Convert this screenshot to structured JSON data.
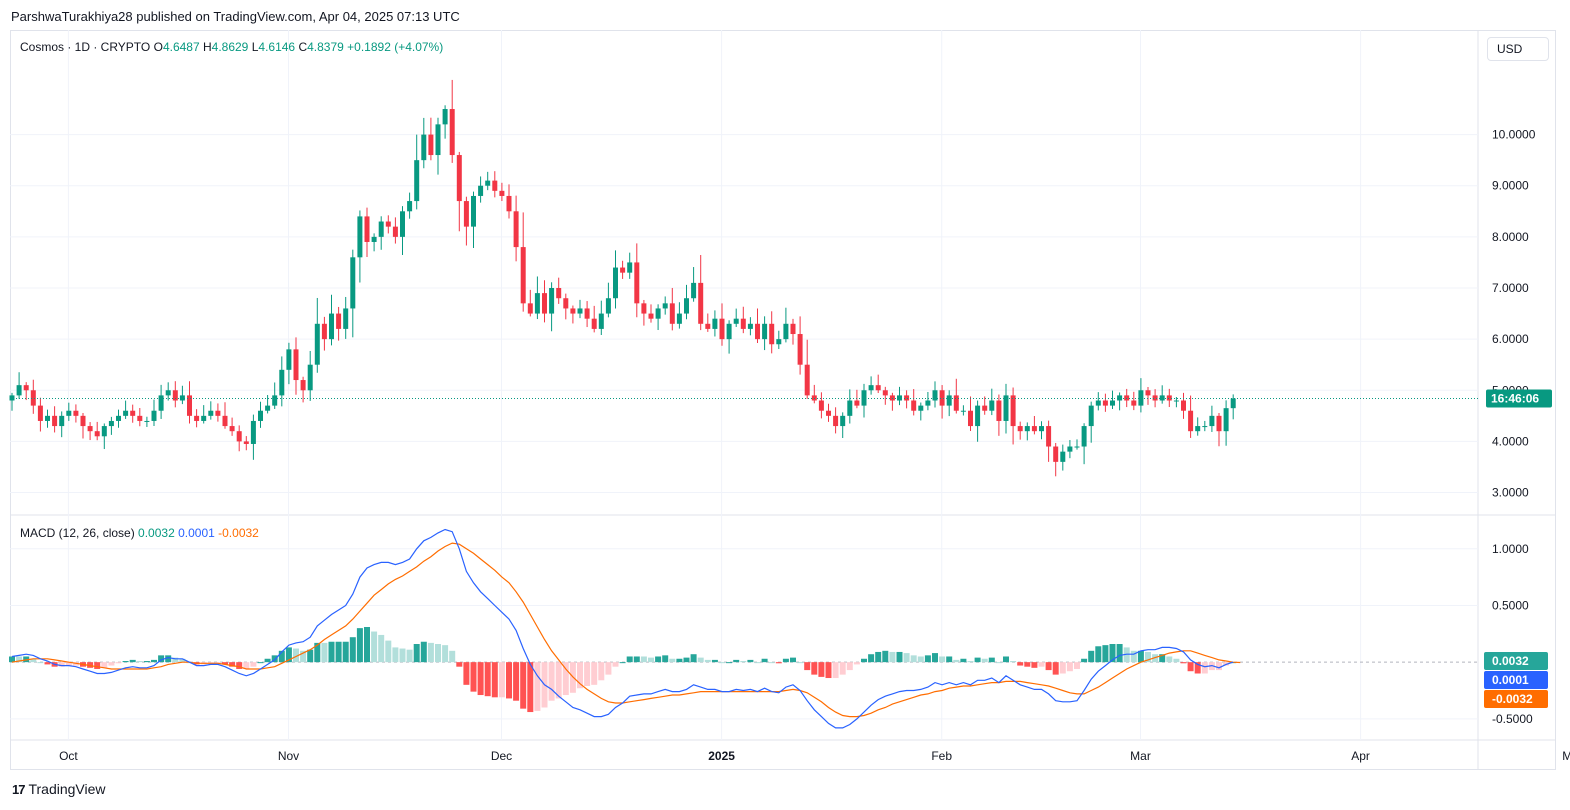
{
  "header": {
    "publisher_line": "ParshwaTurakhiya28 published on TradingView.com, Apr 04, 2025 07:13 UTC"
  },
  "legend": {
    "symbol": "Cosmos · 1D · CRYPTO",
    "open_label": "O",
    "open": "4.6487",
    "high_label": "H",
    "high": "4.8629",
    "low_label": "L",
    "low": "4.6146",
    "close_label": "C",
    "close": "4.8379",
    "change": "+0.1892 (+4.07%)"
  },
  "currency_button": "USD",
  "macd_legend": {
    "name": "MACD (12, 26, close)",
    "hist": "0.0032",
    "macd": "0.0001",
    "signal": "-0.0032"
  },
  "footer": {
    "brand": "TradingView",
    "logo_text": "17"
  },
  "colors": {
    "up": "#089981",
    "down": "#f23645",
    "macd_line": "#2962ff",
    "signal_line": "#ff6d00",
    "hist_up_strong": "#26a69a",
    "hist_up_weak": "#b2dfdb",
    "hist_down_strong": "#ff5252",
    "hist_down_weak": "#ffcdd2"
  },
  "chart_data": [
    {
      "type": "candlestick",
      "title": "Cosmos · 1D · CRYPTO",
      "ylim": [
        2.6,
        11.4
      ],
      "y_ticks": [
        "3.0000",
        "4.0000",
        "5.0000",
        "6.0000",
        "7.0000",
        "8.0000",
        "9.0000",
        "10.0000"
      ],
      "x_ticks": [
        {
          "label": "Oct",
          "day": 4
        },
        {
          "label": "Nov",
          "day": 35
        },
        {
          "label": "Dec",
          "day": 65
        },
        {
          "label": "2025",
          "day": 96
        },
        {
          "label": "Feb",
          "day": 127
        },
        {
          "label": "Mar",
          "day": 155
        },
        {
          "label": "Apr",
          "day": 186
        },
        {
          "label": "May",
          "day": 216
        }
      ],
      "last_price": 4.8379,
      "countdown_label": "16:46:06",
      "closes": [
        4.9,
        5.1,
        5.0,
        4.7,
        4.4,
        4.5,
        4.3,
        4.5,
        4.6,
        4.5,
        4.3,
        4.2,
        4.1,
        4.3,
        4.4,
        4.5,
        4.6,
        4.5,
        4.4,
        4.4,
        4.6,
        4.9,
        5.0,
        4.8,
        4.9,
        4.5,
        4.4,
        4.5,
        4.6,
        4.5,
        4.3,
        4.2,
        4.0,
        3.95,
        4.4,
        4.6,
        4.7,
        4.9,
        5.4,
        5.8,
        5.2,
        5.0,
        5.5,
        6.3,
        6.0,
        6.5,
        6.2,
        6.6,
        7.6,
        8.4,
        7.9,
        8.0,
        8.3,
        8.2,
        8.0,
        8.5,
        8.7,
        9.5,
        10.0,
        9.6,
        10.2,
        10.5,
        9.6,
        8.7,
        8.2,
        8.8,
        9.0,
        9.1,
        8.9,
        8.8,
        8.5,
        7.8,
        6.7,
        6.5,
        6.9,
        6.5,
        7.0,
        6.8,
        6.6,
        6.5,
        6.6,
        6.4,
        6.2,
        6.5,
        6.8,
        7.4,
        7.3,
        7.5,
        6.7,
        6.5,
        6.4,
        6.6,
        6.7,
        6.3,
        6.5,
        6.8,
        7.1,
        6.3,
        6.2,
        6.4,
        6.0,
        6.3,
        6.4,
        6.2,
        6.3,
        6.0,
        6.3,
        5.9,
        6.0,
        6.3,
        6.1,
        5.5,
        4.9,
        4.8,
        4.6,
        4.5,
        4.3,
        4.5,
        4.8,
        4.7,
        5.0,
        5.1,
        5.0,
        4.9,
        4.8,
        4.9,
        4.8,
        4.6,
        4.7,
        4.8,
        5.0,
        4.7,
        4.9,
        4.6,
        4.6,
        4.3,
        4.7,
        4.6,
        4.8,
        4.4,
        4.9,
        4.3,
        4.2,
        4.3,
        4.2,
        4.3,
        3.9,
        3.6,
        3.8,
        3.9,
        3.9,
        4.3,
        4.7,
        4.8,
        4.7,
        4.8,
        4.9,
        4.8,
        4.7,
        5.0,
        4.9,
        4.8,
        4.9,
        4.8,
        4.8,
        4.6,
        4.2,
        4.3,
        4.3,
        4.5,
        4.2,
        4.65,
        4.84
      ],
      "volatility_note": "derived highs/lows extend beyond open/close"
    },
    {
      "type": "line+histogram",
      "title": "MACD (12, 26, close)",
      "ylim": [
        -0.66,
        1.28
      ],
      "y_ticks": [
        "-0.5000",
        "0.5000",
        "1.0000"
      ],
      "last_values": {
        "hist": 0.0032,
        "macd": 0.0001,
        "signal": -0.0032
      },
      "macd": [
        0.05,
        0.06,
        0.07,
        0.06,
        0.03,
        0.01,
        -0.02,
        -0.03,
        -0.03,
        -0.04,
        -0.06,
        -0.08,
        -0.1,
        -0.1,
        -0.09,
        -0.07,
        -0.05,
        -0.04,
        -0.05,
        -0.05,
        -0.03,
        0.02,
        0.04,
        0.03,
        0.03,
        0.0,
        -0.03,
        -0.03,
        -0.02,
        -0.02,
        -0.04,
        -0.07,
        -0.1,
        -0.12,
        -0.1,
        -0.06,
        -0.02,
        0.02,
        0.09,
        0.15,
        0.17,
        0.18,
        0.22,
        0.32,
        0.37,
        0.42,
        0.46,
        0.5,
        0.6,
        0.75,
        0.83,
        0.86,
        0.88,
        0.88,
        0.86,
        0.88,
        0.91,
        1.0,
        1.07,
        1.1,
        1.14,
        1.17,
        1.15,
        1.0,
        0.8,
        0.7,
        0.62,
        0.56,
        0.5,
        0.44,
        0.38,
        0.28,
        0.12,
        -0.02,
        -0.12,
        -0.2,
        -0.24,
        -0.3,
        -0.35,
        -0.4,
        -0.42,
        -0.45,
        -0.48,
        -0.48,
        -0.46,
        -0.4,
        -0.36,
        -0.3,
        -0.29,
        -0.28,
        -0.28,
        -0.26,
        -0.24,
        -0.26,
        -0.26,
        -0.24,
        -0.2,
        -0.22,
        -0.24,
        -0.24,
        -0.26,
        -0.26,
        -0.24,
        -0.25,
        -0.24,
        -0.26,
        -0.23,
        -0.26,
        -0.27,
        -0.22,
        -0.2,
        -0.25,
        -0.34,
        -0.42,
        -0.48,
        -0.54,
        -0.58,
        -0.58,
        -0.55,
        -0.5,
        -0.44,
        -0.38,
        -0.33,
        -0.3,
        -0.28,
        -0.26,
        -0.25,
        -0.25,
        -0.24,
        -0.22,
        -0.18,
        -0.2,
        -0.18,
        -0.2,
        -0.18,
        -0.2,
        -0.16,
        -0.16,
        -0.14,
        -0.18,
        -0.12,
        -0.16,
        -0.2,
        -0.22,
        -0.24,
        -0.24,
        -0.28,
        -0.34,
        -0.35,
        -0.35,
        -0.34,
        -0.25,
        -0.15,
        -0.08,
        -0.03,
        0.02,
        0.06,
        0.07,
        0.07,
        0.1,
        0.11,
        0.11,
        0.13,
        0.13,
        0.12,
        0.09,
        0.02,
        -0.02,
        -0.04,
        -0.03,
        -0.05,
        -0.02,
        0.0001
      ],
      "signal": [
        0.0,
        0.01,
        0.02,
        0.03,
        0.03,
        0.03,
        0.02,
        0.01,
        0.0,
        -0.01,
        -0.02,
        -0.03,
        -0.04,
        -0.05,
        -0.06,
        -0.06,
        -0.06,
        -0.06,
        -0.06,
        -0.06,
        -0.05,
        -0.04,
        -0.02,
        -0.01,
        0.0,
        0.0,
        -0.01,
        -0.01,
        -0.01,
        -0.01,
        -0.02,
        -0.03,
        -0.04,
        -0.06,
        -0.06,
        -0.06,
        -0.05,
        -0.04,
        -0.01,
        0.02,
        0.05,
        0.08,
        0.11,
        0.15,
        0.2,
        0.24,
        0.28,
        0.32,
        0.38,
        0.45,
        0.52,
        0.59,
        0.64,
        0.69,
        0.73,
        0.76,
        0.8,
        0.84,
        0.89,
        0.93,
        0.98,
        1.02,
        1.05,
        1.04,
        1.0,
        0.96,
        0.91,
        0.86,
        0.81,
        0.75,
        0.7,
        0.62,
        0.53,
        0.42,
        0.31,
        0.2,
        0.1,
        0.02,
        -0.06,
        -0.13,
        -0.19,
        -0.24,
        -0.28,
        -0.32,
        -0.35,
        -0.36,
        -0.36,
        -0.35,
        -0.34,
        -0.33,
        -0.32,
        -0.31,
        -0.3,
        -0.29,
        -0.29,
        -0.28,
        -0.27,
        -0.26,
        -0.26,
        -0.26,
        -0.26,
        -0.26,
        -0.26,
        -0.26,
        -0.26,
        -0.26,
        -0.26,
        -0.26,
        -0.26,
        -0.25,
        -0.24,
        -0.25,
        -0.27,
        -0.31,
        -0.35,
        -0.4,
        -0.44,
        -0.47,
        -0.48,
        -0.48,
        -0.47,
        -0.45,
        -0.42,
        -0.4,
        -0.37,
        -0.35,
        -0.33,
        -0.31,
        -0.29,
        -0.28,
        -0.26,
        -0.25,
        -0.23,
        -0.22,
        -0.21,
        -0.21,
        -0.2,
        -0.19,
        -0.18,
        -0.18,
        -0.17,
        -0.17,
        -0.17,
        -0.18,
        -0.19,
        -0.2,
        -0.21,
        -0.23,
        -0.25,
        -0.27,
        -0.28,
        -0.28,
        -0.25,
        -0.22,
        -0.18,
        -0.14,
        -0.1,
        -0.06,
        -0.03,
        0.0,
        0.02,
        0.04,
        0.06,
        0.08,
        0.09,
        0.1,
        0.1,
        0.08,
        0.06,
        0.04,
        0.02,
        0.01,
        0.0,
        -0.0032
      ]
    }
  ]
}
